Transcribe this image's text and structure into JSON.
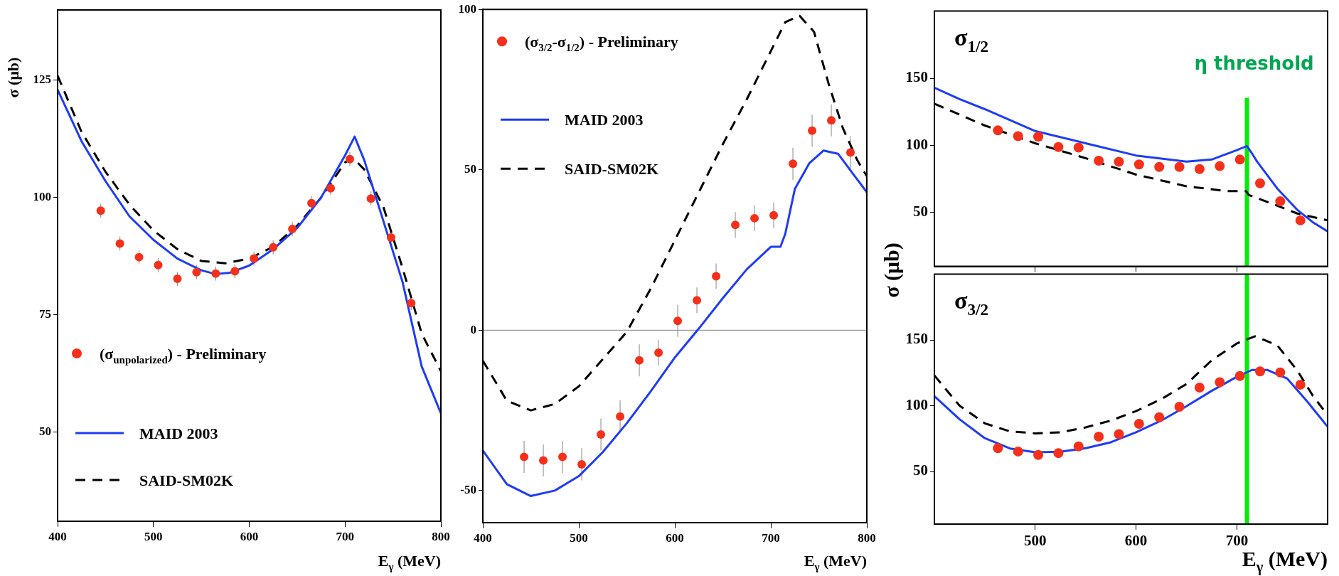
{
  "chart_data": [
    {
      "type": "scatter",
      "xlabel": "E$_{γ}$ (MeV)",
      "ylabel": "σ (μb)",
      "xlim": [
        400,
        800
      ],
      "xticks": [
        400,
        500,
        600,
        700,
        800
      ],
      "ylim": [
        31,
        140
      ],
      "yticks": [
        50,
        75,
        100,
        125
      ],
      "legend": "bottom left",
      "series": [
        {
          "name": "(σ$_{unpolarized}$) - Preliminary",
          "marker": "circle",
          "color": "#f5301a",
          "x": [
            445,
            465,
            485,
            505,
            525,
            545,
            565,
            585,
            605,
            625,
            645,
            665,
            685,
            705,
            727,
            748,
            769
          ],
          "values": [
            97.2,
            90.2,
            87.3,
            85.6,
            82.7,
            84.1,
            83.8,
            84.3,
            87.0,
            89.4,
            93.3,
            98.8,
            102.0,
            108.2,
            99.8,
            91.5,
            77.5
          ],
          "errors": [
            1.5,
            1.5,
            1.5,
            1.5,
            1.5,
            1.5,
            1.5,
            1.5,
            1.5,
            1.5,
            1.5,
            1.5,
            1.5,
            1.5,
            1.5,
            1.5,
            1.5
          ]
        },
        {
          "name": "MAID 2003",
          "type": "line",
          "line_style": "solid",
          "marker": "none",
          "color": "#1f3cf5",
          "x": [
            400,
            425,
            450,
            475,
            500,
            525,
            550,
            565,
            580,
            600,
            625,
            650,
            675,
            700,
            710,
            720,
            740,
            760,
            780,
            800
          ],
          "values": [
            123,
            112,
            103.5,
            96,
            91,
            87,
            84.5,
            83.7,
            84,
            85.5,
            89,
            93.5,
            100,
            109,
            113,
            108,
            95,
            82,
            64,
            54
          ]
        },
        {
          "name": "SAID-SM02K",
          "type": "line",
          "line_style": "dashed",
          "marker": "none",
          "color": "#000000",
          "x": [
            400,
            425,
            450,
            475,
            500,
            525,
            550,
            575,
            600,
            625,
            650,
            675,
            700,
            708,
            720,
            740,
            760,
            780,
            800
          ],
          "values": [
            126,
            114,
            105.5,
            98.5,
            93,
            89,
            86.5,
            86,
            87,
            89.5,
            94,
            100,
            107.5,
            108.5,
            106,
            98,
            85,
            71,
            63
          ]
        }
      ]
    },
    {
      "type": "scatter",
      "xlabel": "E$_{γ}$ (MeV)",
      "xlim": [
        400,
        800
      ],
      "xticks": [
        400,
        500,
        600,
        700,
        800
      ],
      "ylim": [
        -60,
        100
      ],
      "yticks": [
        -50,
        0,
        50,
        100
      ],
      "legend": "top left",
      "ref_lines": [
        {
          "axis": "y",
          "value": 0,
          "color": "#808080"
        }
      ],
      "series": [
        {
          "name": "(σ$_{3/2}$-σ$_{1/2}$) - Preliminary",
          "marker": "circle",
          "color": "#f5301a",
          "x": [
            443,
            463,
            483,
            503,
            523,
            543,
            563,
            583,
            603,
            623,
            643,
            663,
            683,
            703,
            723,
            743,
            763,
            783
          ],
          "values": [
            -39.5,
            -40.6,
            -39.5,
            -41.8,
            -32.5,
            -26.9,
            -9.4,
            -7.0,
            2.9,
            9.3,
            16.8,
            32.8,
            34.9,
            35.8,
            51.9,
            62.2,
            65.4,
            55.4
          ],
          "errors": [
            5,
            5,
            5,
            5,
            5,
            5,
            5,
            4,
            5,
            4,
            4,
            4,
            4,
            4,
            5,
            5,
            5,
            5
          ]
        },
        {
          "name": "MAID 2003",
          "type": "line",
          "line_style": "solid",
          "marker": "none",
          "color": "#1f3cf5",
          "x": [
            400,
            425,
            450,
            475,
            500,
            525,
            550,
            575,
            600,
            625,
            650,
            675,
            700,
            710,
            715,
            725,
            740,
            755,
            770,
            785,
            800
          ],
          "values": [
            -37.5,
            -48,
            -51.7,
            -50,
            -45.5,
            -38,
            -29,
            -19,
            -8.5,
            0.5,
            10,
            19,
            26,
            26,
            30,
            44,
            52,
            56,
            55,
            49,
            43
          ]
        },
        {
          "name": "SAID-SM02K",
          "type": "line",
          "line_style": "dashed",
          "marker": "none",
          "color": "#000000",
          "x": [
            400,
            425,
            450,
            475,
            500,
            525,
            550,
            575,
            600,
            625,
            650,
            675,
            700,
            715,
            730,
            745,
            760,
            775,
            790,
            800
          ],
          "values": [
            -9.5,
            -22,
            -25,
            -23,
            -17.5,
            -9,
            -0.5,
            13,
            28,
            43,
            58,
            72,
            87,
            96,
            98,
            93,
            77,
            63,
            53,
            48
          ]
        }
      ]
    },
    {
      "type": "scatter",
      "title": "σ$_{1/2}$",
      "ylabel": "σ (μb)",
      "xlim": [
        400,
        790
      ],
      "xticks": [
        500,
        600,
        700
      ],
      "ylim": [
        10,
        200
      ],
      "yticks": [
        50,
        100,
        150
      ],
      "tick_labels": "y",
      "ref_lines": [
        {
          "axis": "x",
          "value": 710,
          "label": "η threshold",
          "color": "#00ee00"
        }
      ],
      "series": [
        {
          "marker": "circle",
          "color": "#f5301a",
          "x": [
            463,
            483,
            503,
            523,
            543,
            563,
            583,
            603,
            623,
            643,
            663,
            683,
            703,
            723,
            743,
            763
          ],
          "values": [
            111.2,
            106.9,
            106.5,
            98.8,
            98.4,
            88.6,
            87.8,
            85.8,
            84,
            84,
            82.4,
            84.6,
            89.5,
            71.8,
            58.4,
            44.2
          ]
        },
        {
          "type": "line",
          "line_style": "solid",
          "marker": "none",
          "color": "#1f3cf5",
          "x": [
            400,
            425,
            450,
            500,
            550,
            600,
            650,
            675,
            700,
            710,
            715,
            720,
            740,
            760,
            775,
            790
          ],
          "values": [
            143,
            134.5,
            127,
            110.7,
            101.6,
            92.5,
            88,
            89.5,
            96.5,
            99.5,
            94,
            88,
            68,
            52,
            43,
            36
          ]
        },
        {
          "type": "line",
          "line_style": "dashed",
          "marker": "none",
          "color": "#000000",
          "x": [
            400,
            450,
            500,
            550,
            600,
            650,
            690,
            709,
            712,
            730,
            760,
            790
          ],
          "values": [
            131,
            114.8,
            101.6,
            90.5,
            78.3,
            69.6,
            66,
            66,
            63,
            58,
            49.3,
            44.2
          ]
        }
      ]
    },
    {
      "type": "scatter",
      "title": "σ$_{3/2}$",
      "xlabel": "E$_{γ}$ (MeV)",
      "xlim": [
        400,
        790
      ],
      "xticks": [
        500,
        600,
        700
      ],
      "ylim": [
        10,
        200
      ],
      "yticks": [
        50,
        100,
        150
      ],
      "ref_lines": [
        {
          "axis": "x",
          "value": 710,
          "color": "#00ee00"
        }
      ],
      "series": [
        {
          "marker": "circle",
          "color": "#f5301a",
          "x": [
            463,
            483,
            503,
            523,
            543,
            563,
            583,
            603,
            623,
            643,
            663,
            683,
            703,
            723,
            743,
            763
          ],
          "values": [
            67.7,
            65.2,
            62.6,
            64,
            69.1,
            76.5,
            78.4,
            86.2,
            91.2,
            99.2,
            113.8,
            117.9,
            122.6,
            126.1,
            125.3,
            116
          ]
        },
        {
          "type": "line",
          "line_style": "solid",
          "marker": "none",
          "color": "#1f3cf5",
          "x": [
            400,
            425,
            450,
            475,
            500,
            525,
            550,
            575,
            600,
            625,
            650,
            675,
            700,
            715,
            730,
            750,
            770,
            790
          ],
          "values": [
            107.2,
            89.7,
            75.3,
            67.5,
            64.6,
            65,
            67.7,
            72.2,
            79.8,
            88.7,
            99.6,
            111.3,
            122,
            127.2,
            127.2,
            120.6,
            103,
            84
          ]
        },
        {
          "type": "line",
          "line_style": "dashed",
          "marker": "none",
          "color": "#000000",
          "x": [
            400,
            425,
            450,
            475,
            500,
            525,
            550,
            575,
            600,
            625,
            650,
            675,
            700,
            718,
            740,
            760,
            775,
            790
          ],
          "values": [
            123,
            100,
            86.6,
            80.5,
            79,
            79.8,
            83.5,
            88.7,
            95.9,
            105,
            116.5,
            134.5,
            147.4,
            152.8,
            146,
            126.7,
            108,
            92.8
          ]
        }
      ]
    }
  ]
}
